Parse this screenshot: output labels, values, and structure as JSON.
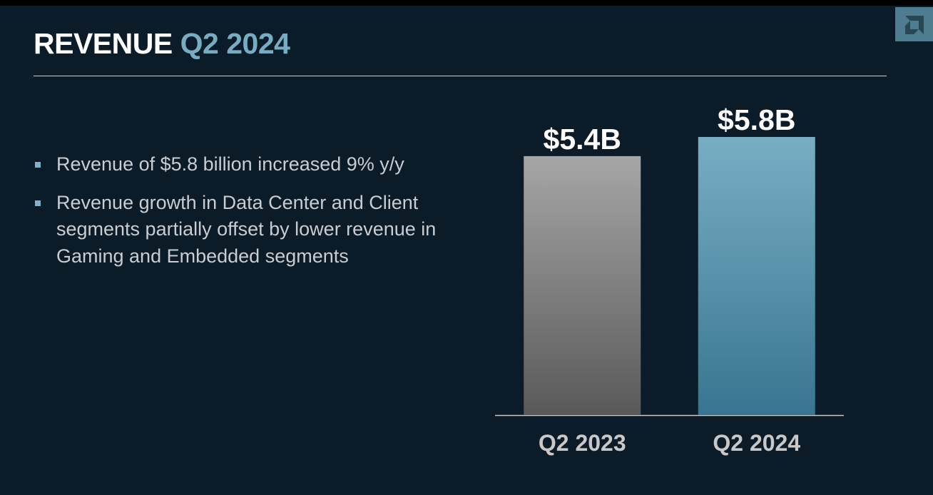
{
  "slide": {
    "title": [
      "REVENUE",
      "Q2 2024"
    ],
    "bullets": [
      "Revenue of $5.8 billion increased 9% y/y",
      "Revenue growth in Data Center and Client segments partially offset by lower revenue in Gaming and Embedded segments"
    ]
  },
  "chart_data": {
    "type": "bar",
    "categories": [
      "Q2 2023",
      "Q2 2024"
    ],
    "values": [
      5.4,
      5.8
    ],
    "value_labels": [
      "$5.4B",
      "$5.8B"
    ],
    "colors": [
      "#a6a6a6",
      "#78aec4"
    ]
  }
}
